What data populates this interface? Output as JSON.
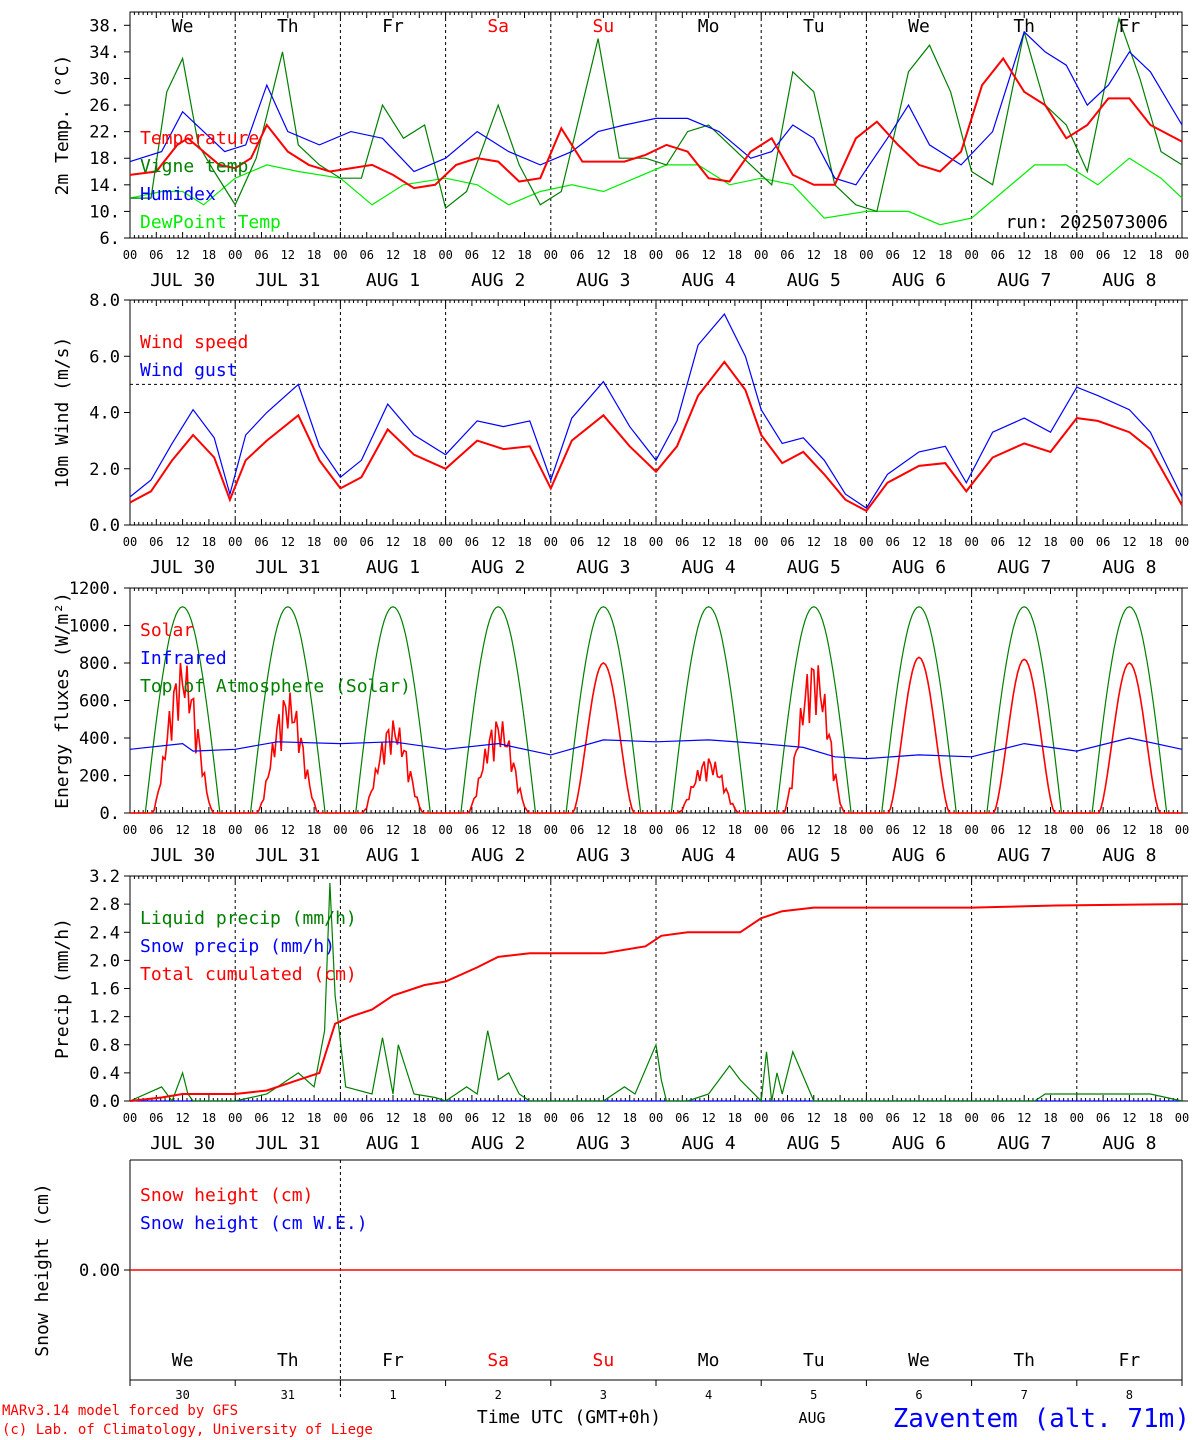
{
  "colors": {
    "red": "#ff0000",
    "blue": "#0000ff",
    "green": "#007f00",
    "lightgreen": "#00ee00",
    "black": "#000000"
  },
  "days_of_week": [
    "We",
    "Th",
    "Fr",
    "Sa",
    "Su",
    "Mo",
    "Tu",
    "We",
    "Th",
    "Fr"
  ],
  "weekend_days_of_week": [
    "Sa",
    "Su"
  ],
  "date_labels": [
    "JUL 30",
    "JUL 31",
    "AUG  1",
    "AUG  2",
    "AUG  3",
    "AUG  4",
    "AUG  5",
    "AUG  6",
    "AUG  7",
    "AUG  8"
  ],
  "hour_labels": [
    "00",
    "06",
    "12",
    "18"
  ],
  "end_hour_label": "00",
  "bottom_day_numbers": [
    "30",
    "31",
    "1",
    "2",
    "3",
    "4",
    "5",
    "6",
    "7",
    "8"
  ],
  "footer": {
    "model_line": "MARv3.14 model forced by GFS",
    "lab_line": "(c) Lab. of Climatology, University of Liege",
    "time_axis_title": "Time UTC (GMT+0h)",
    "month_label": "AUG",
    "station": "Zaventem (alt. 71m)"
  },
  "chart_data": [
    {
      "type": "line",
      "ylabel": "2m Temp. (°C)",
      "ylim": [
        6,
        40
      ],
      "yticks": [
        "38.",
        "34.",
        "30.",
        "26.",
        "22.",
        "18.",
        "14.",
        "10.",
        "6."
      ],
      "ytick_values": [
        38,
        34,
        30,
        26,
        22,
        18,
        14,
        10,
        6
      ],
      "x_unit": "days since JUL 30 00 UTC",
      "annotation": "run: 2025073006",
      "legend_entries": [
        "Temperature",
        "Vigne temp",
        "Humidex",
        "DewPoint Temp"
      ],
      "series": [
        {
          "name": "Temperature",
          "color": "#ff0000",
          "x": [
            0,
            0.25,
            0.45,
            0.55,
            0.7,
            0.85,
            1.0,
            1.15,
            1.3,
            1.5,
            1.7,
            1.9,
            2.1,
            2.3,
            2.5,
            2.7,
            2.9,
            3.1,
            3.3,
            3.5,
            3.7,
            3.9,
            4.1,
            4.3,
            4.5,
            4.7,
            4.9,
            5.1,
            5.3,
            5.5,
            5.7,
            5.9,
            6.1,
            6.3,
            6.5,
            6.7,
            6.9,
            7.1,
            7.3,
            7.5,
            7.7,
            7.9,
            8.1,
            8.3,
            8.5,
            8.7,
            8.9,
            9.1,
            9.3,
            9.5,
            9.7,
            10.0
          ],
          "values": [
            15.5,
            16,
            20,
            21,
            19,
            17,
            16.5,
            18,
            23,
            19,
            17,
            16,
            16.5,
            17,
            15.5,
            13.5,
            14,
            17,
            18,
            17.5,
            14.5,
            15,
            22.5,
            17.5,
            17.5,
            17.5,
            18.5,
            20,
            19,
            15,
            14.5,
            19,
            21,
            15.5,
            14,
            14,
            21,
            23.5,
            20,
            17,
            16,
            19,
            29,
            33,
            28,
            26,
            21,
            23,
            27,
            27,
            23,
            20.5
          ]
        },
        {
          "name": "Vigne temp",
          "color": "#007f00",
          "x": [
            0,
            0.2,
            0.35,
            0.5,
            0.65,
            0.8,
            1.0,
            1.2,
            1.45,
            1.6,
            1.8,
            2.0,
            2.2,
            2.4,
            2.6,
            2.8,
            3.0,
            3.2,
            3.5,
            3.7,
            3.9,
            4.1,
            4.45,
            4.65,
            4.9,
            5.1,
            5.3,
            5.5,
            5.7,
            5.9,
            6.1,
            6.3,
            6.5,
            6.7,
            6.9,
            7.1,
            7.4,
            7.6,
            7.8,
            8.0,
            8.2,
            8.5,
            8.7,
            8.9,
            9.1,
            9.4,
            9.6,
            9.8,
            10.0
          ],
          "values": [
            12,
            12,
            28,
            33,
            20,
            16,
            11,
            18,
            34,
            20,
            17,
            15,
            15,
            26,
            21,
            23,
            10.5,
            13,
            26,
            17,
            11,
            13,
            36,
            18,
            18,
            17,
            22,
            23,
            20,
            17,
            14,
            31,
            28,
            14,
            11,
            10,
            31,
            35,
            28,
            16,
            14,
            37,
            26,
            23,
            16,
            39,
            30,
            19,
            17
          ]
        },
        {
          "name": "Humidex",
          "color": "#0000ff",
          "x": [
            0,
            0.3,
            0.5,
            0.7,
            0.9,
            1.1,
            1.3,
            1.5,
            1.8,
            2.1,
            2.4,
            2.7,
            3.0,
            3.3,
            3.6,
            3.9,
            4.2,
            4.45,
            4.7,
            5.0,
            5.3,
            5.6,
            5.9,
            6.1,
            6.3,
            6.5,
            6.7,
            6.9,
            7.2,
            7.4,
            7.6,
            7.9,
            8.2,
            8.5,
            8.7,
            8.9,
            9.1,
            9.3,
            9.5,
            9.7,
            10.0
          ],
          "values": [
            17.5,
            19,
            25,
            22,
            19,
            20,
            29,
            22,
            20,
            22,
            21,
            16,
            18,
            22,
            19,
            17,
            19,
            22,
            23,
            24,
            24,
            22,
            18,
            19,
            23,
            21,
            15,
            14,
            21,
            26,
            20,
            17,
            22,
            37,
            34,
            32,
            26,
            29,
            34,
            31,
            23
          ]
        },
        {
          "name": "DewPoint Temp",
          "color": "#00ee00",
          "x": [
            0,
            0.3,
            0.5,
            0.7,
            1.0,
            1.3,
            1.6,
            2.0,
            2.3,
            2.6,
            3.0,
            3.3,
            3.6,
            3.9,
            4.2,
            4.5,
            4.8,
            5.1,
            5.4,
            5.7,
            6.0,
            6.3,
            6.6,
            7.0,
            7.4,
            7.7,
            8.0,
            8.3,
            8.6,
            8.9,
            9.2,
            9.5,
            9.8,
            10.0
          ],
          "values": [
            12,
            13,
            13,
            11,
            15,
            17,
            16,
            15,
            11,
            14,
            15,
            14,
            11,
            13,
            14,
            13,
            15,
            17,
            17,
            14,
            15,
            14,
            9,
            10,
            10,
            8,
            9,
            13,
            17,
            17,
            14,
            18,
            15,
            12
          ]
        }
      ]
    },
    {
      "type": "line",
      "ylabel": "10m Wind (m/s)",
      "ylim": [
        0,
        8
      ],
      "yticks": [
        "8.0",
        "6.0",
        "4.0",
        "2.0",
        "0.0"
      ],
      "ytick_values": [
        8,
        6,
        4,
        2,
        0
      ],
      "reference_line": 5,
      "x_unit": "days since JUL 30 00 UTC",
      "legend_entries": [
        "Wind speed",
        "Wind gust"
      ],
      "series": [
        {
          "name": "Wind speed",
          "color": "#ff0000",
          "x": [
            0,
            0.2,
            0.4,
            0.6,
            0.8,
            0.95,
            1.1,
            1.3,
            1.6,
            1.8,
            2.0,
            2.2,
            2.45,
            2.7,
            3.0,
            3.3,
            3.55,
            3.8,
            4.0,
            4.2,
            4.5,
            4.75,
            5.0,
            5.2,
            5.4,
            5.65,
            5.85,
            6.0,
            6.2,
            6.4,
            6.6,
            6.8,
            7.0,
            7.2,
            7.5,
            7.75,
            7.95,
            8.2,
            8.5,
            8.75,
            9.0,
            9.2,
            9.5,
            9.7,
            10.0
          ],
          "values": [
            0.8,
            1.2,
            2.3,
            3.2,
            2.4,
            0.9,
            2.3,
            3.0,
            3.9,
            2.3,
            1.3,
            1.7,
            3.4,
            2.5,
            2.0,
            3.0,
            2.7,
            2.8,
            1.3,
            3.0,
            3.9,
            2.8,
            1.9,
            2.8,
            4.6,
            5.8,
            4.8,
            3.2,
            2.2,
            2.6,
            1.8,
            0.9,
            0.5,
            1.5,
            2.1,
            2.2,
            1.2,
            2.4,
            2.9,
            2.6,
            3.8,
            3.7,
            3.3,
            2.7,
            0.7
          ]
        },
        {
          "name": "Wind gust",
          "color": "#0000ff",
          "x": [
            0,
            0.2,
            0.4,
            0.6,
            0.8,
            0.95,
            1.1,
            1.3,
            1.6,
            1.8,
            2.0,
            2.2,
            2.45,
            2.7,
            3.0,
            3.3,
            3.55,
            3.8,
            4.0,
            4.2,
            4.5,
            4.75,
            5.0,
            5.2,
            5.4,
            5.65,
            5.85,
            6.0,
            6.2,
            6.4,
            6.6,
            6.8,
            7.0,
            7.2,
            7.5,
            7.75,
            7.95,
            8.2,
            8.5,
            8.75,
            9.0,
            9.2,
            9.5,
            9.7,
            10.0
          ],
          "values": [
            1.0,
            1.6,
            2.9,
            4.1,
            3.1,
            1.1,
            3.2,
            4.0,
            5.0,
            2.8,
            1.7,
            2.3,
            4.3,
            3.2,
            2.5,
            3.7,
            3.5,
            3.7,
            1.6,
            3.8,
            5.1,
            3.5,
            2.3,
            3.7,
            6.4,
            7.5,
            6.0,
            4.1,
            2.9,
            3.1,
            2.3,
            1.1,
            0.6,
            1.8,
            2.6,
            2.8,
            1.5,
            3.3,
            3.8,
            3.3,
            4.9,
            4.6,
            4.1,
            3.3,
            1.0
          ]
        }
      ]
    },
    {
      "type": "line",
      "ylabel": "Energy fluxes (W/m²)",
      "ylim": [
        0,
        1200
      ],
      "yticks": [
        "1200.",
        "1000.",
        "800.",
        "600.",
        "400.",
        "200.",
        "0."
      ],
      "ytick_values": [
        1200,
        1000,
        800,
        600,
        400,
        200,
        0
      ],
      "x_unit": "days since JUL 30 00 UTC",
      "legend_entries": [
        "Solar",
        "Infrared",
        "Top of Atmosphere (Solar)"
      ],
      "toa_daily_peak_wm2": 1100,
      "solar_daily_peaks_wm2": [
        820,
        650,
        500,
        510,
        800,
        300,
        830,
        830,
        820,
        800
      ],
      "series": [
        {
          "name": "Infrared",
          "color": "#0000ff",
          "x": [
            0,
            0.5,
            0.6,
            1.0,
            1.4,
            2.0,
            2.5,
            3.0,
            3.5,
            4.0,
            4.5,
            5.0,
            5.5,
            6.0,
            6.4,
            6.7,
            7.0,
            7.5,
            8.0,
            8.5,
            9.0,
            9.5,
            10.0
          ],
          "values": [
            340,
            370,
            330,
            340,
            380,
            370,
            380,
            340,
            370,
            310,
            390,
            380,
            390,
            370,
            350,
            300,
            290,
            310,
            300,
            370,
            330,
            400,
            340
          ]
        }
      ]
    },
    {
      "type": "line",
      "ylabel": "Precip (mm/h)",
      "ylim": [
        0,
        3.2
      ],
      "yticks": [
        "3.2",
        "2.8",
        "2.4",
        "2.0",
        "1.6",
        "1.2",
        "0.8",
        "0.4",
        "0.0"
      ],
      "ytick_values": [
        3.2,
        2.8,
        2.4,
        2.0,
        1.6,
        1.2,
        0.8,
        0.4,
        0.0
      ],
      "x_unit": "days since JUL 30 00 UTC",
      "legend_entries": [
        "Liquid precip (mm/h)",
        "Snow precip (mm/h)",
        "Total cumulated (cm)"
      ],
      "series": [
        {
          "name": "Liquid precip (mm/h)",
          "color": "#007f00",
          "x": [
            0,
            0.3,
            0.4,
            0.5,
            0.55,
            0.6,
            0.7,
            1.0,
            1.3,
            1.6,
            1.75,
            1.85,
            1.9,
            1.95,
            2.05,
            2.3,
            2.4,
            2.5,
            2.55,
            2.7,
            2.9,
            3.0,
            3.1,
            3.2,
            3.3,
            3.4,
            3.5,
            3.6,
            3.7,
            3.8,
            4.5,
            4.7,
            4.8,
            5.0,
            5.05,
            5.1,
            5.3,
            5.5,
            5.7,
            5.8,
            6.0,
            6.05,
            6.1,
            6.15,
            6.2,
            6.3,
            6.5,
            6.7,
            7.0,
            8.6,
            8.7,
            9.7,
            10.0
          ],
          "values": [
            0,
            0.2,
            0,
            0.4,
            0.1,
            0,
            0,
            0,
            0.1,
            0.4,
            0.2,
            1.0,
            3.1,
            1.5,
            0.2,
            0.1,
            0.9,
            0.1,
            0.8,
            0.1,
            0.05,
            0,
            0.1,
            0.2,
            0.1,
            1.0,
            0.3,
            0.4,
            0.1,
            0,
            0,
            0.2,
            0.1,
            0.8,
            0.3,
            0,
            0,
            0.1,
            0.5,
            0.3,
            0,
            0.7,
            0,
            0.4,
            0.1,
            0.7,
            0,
            0,
            0,
            0,
            0.1,
            0.1,
            0
          ]
        },
        {
          "name": "Snow precip (mm/h)",
          "color": "#0000ff",
          "x": [
            0,
            10
          ],
          "values": [
            0,
            0
          ]
        },
        {
          "name": "Total cumulated (cm)",
          "color": "#ff0000",
          "x": [
            0,
            0.3,
            0.5,
            1.0,
            1.3,
            1.6,
            1.8,
            1.95,
            2.1,
            2.3,
            2.5,
            2.8,
            3.0,
            3.3,
            3.5,
            3.8,
            4.0,
            4.5,
            4.9,
            5.05,
            5.3,
            5.8,
            6.0,
            6.2,
            6.5,
            7.0,
            8.0,
            8.8,
            10.0
          ],
          "values": [
            0,
            0.05,
            0.1,
            0.1,
            0.15,
            0.3,
            0.4,
            1.1,
            1.2,
            1.3,
            1.5,
            1.65,
            1.7,
            1.9,
            2.05,
            2.1,
            2.1,
            2.1,
            2.2,
            2.35,
            2.4,
            2.4,
            2.6,
            2.7,
            2.75,
            2.75,
            2.75,
            2.78,
            2.8
          ]
        }
      ]
    },
    {
      "type": "line",
      "ylabel": "Snow height (cm)",
      "yticks": [
        "0.00"
      ],
      "ytick_values": [
        0
      ],
      "x_unit": "days since JUL 30 00 UTC",
      "legend_entries": [
        "Snow height (cm)",
        "Snow height (cm W.E.)"
      ],
      "series": [
        {
          "name": "Snow height (cm)",
          "color": "#ff0000",
          "x": [
            0,
            10
          ],
          "values": [
            0,
            0
          ]
        }
      ]
    }
  ]
}
